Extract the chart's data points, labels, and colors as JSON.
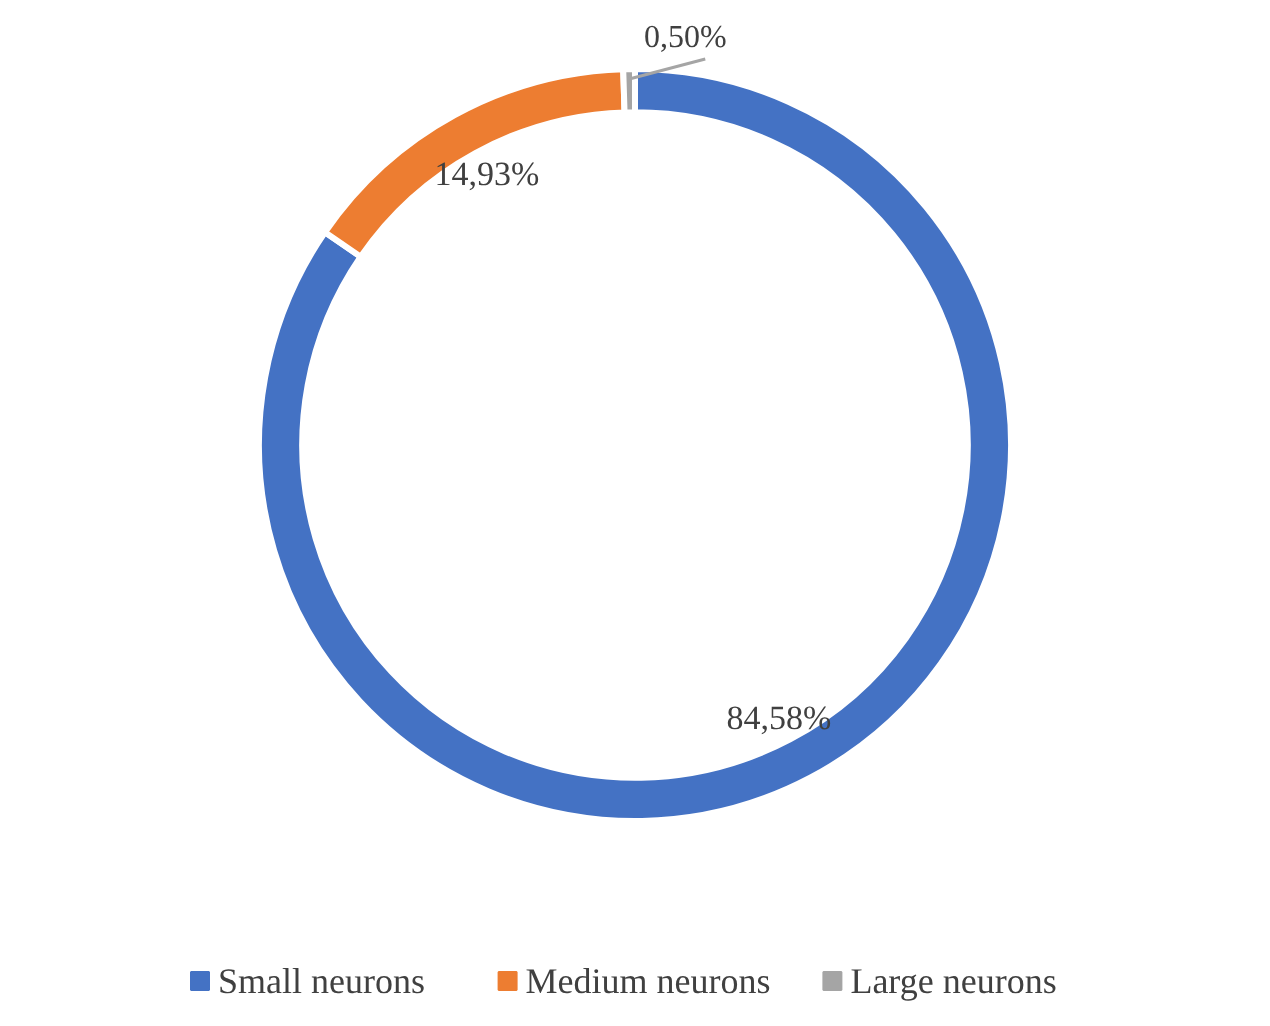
{
  "chart_data": {
    "type": "donut",
    "categories": [
      "Small neurons",
      "Medium neurons",
      "Large neurons"
    ],
    "values": [
      84.58,
      14.93,
      0.5
    ],
    "colors": [
      "#4472c4",
      "#ed7d31",
      "#a5a5a5"
    ],
    "value_labels": [
      "84,58%",
      "14,93%",
      "0,50%"
    ],
    "legend": "bottom"
  }
}
